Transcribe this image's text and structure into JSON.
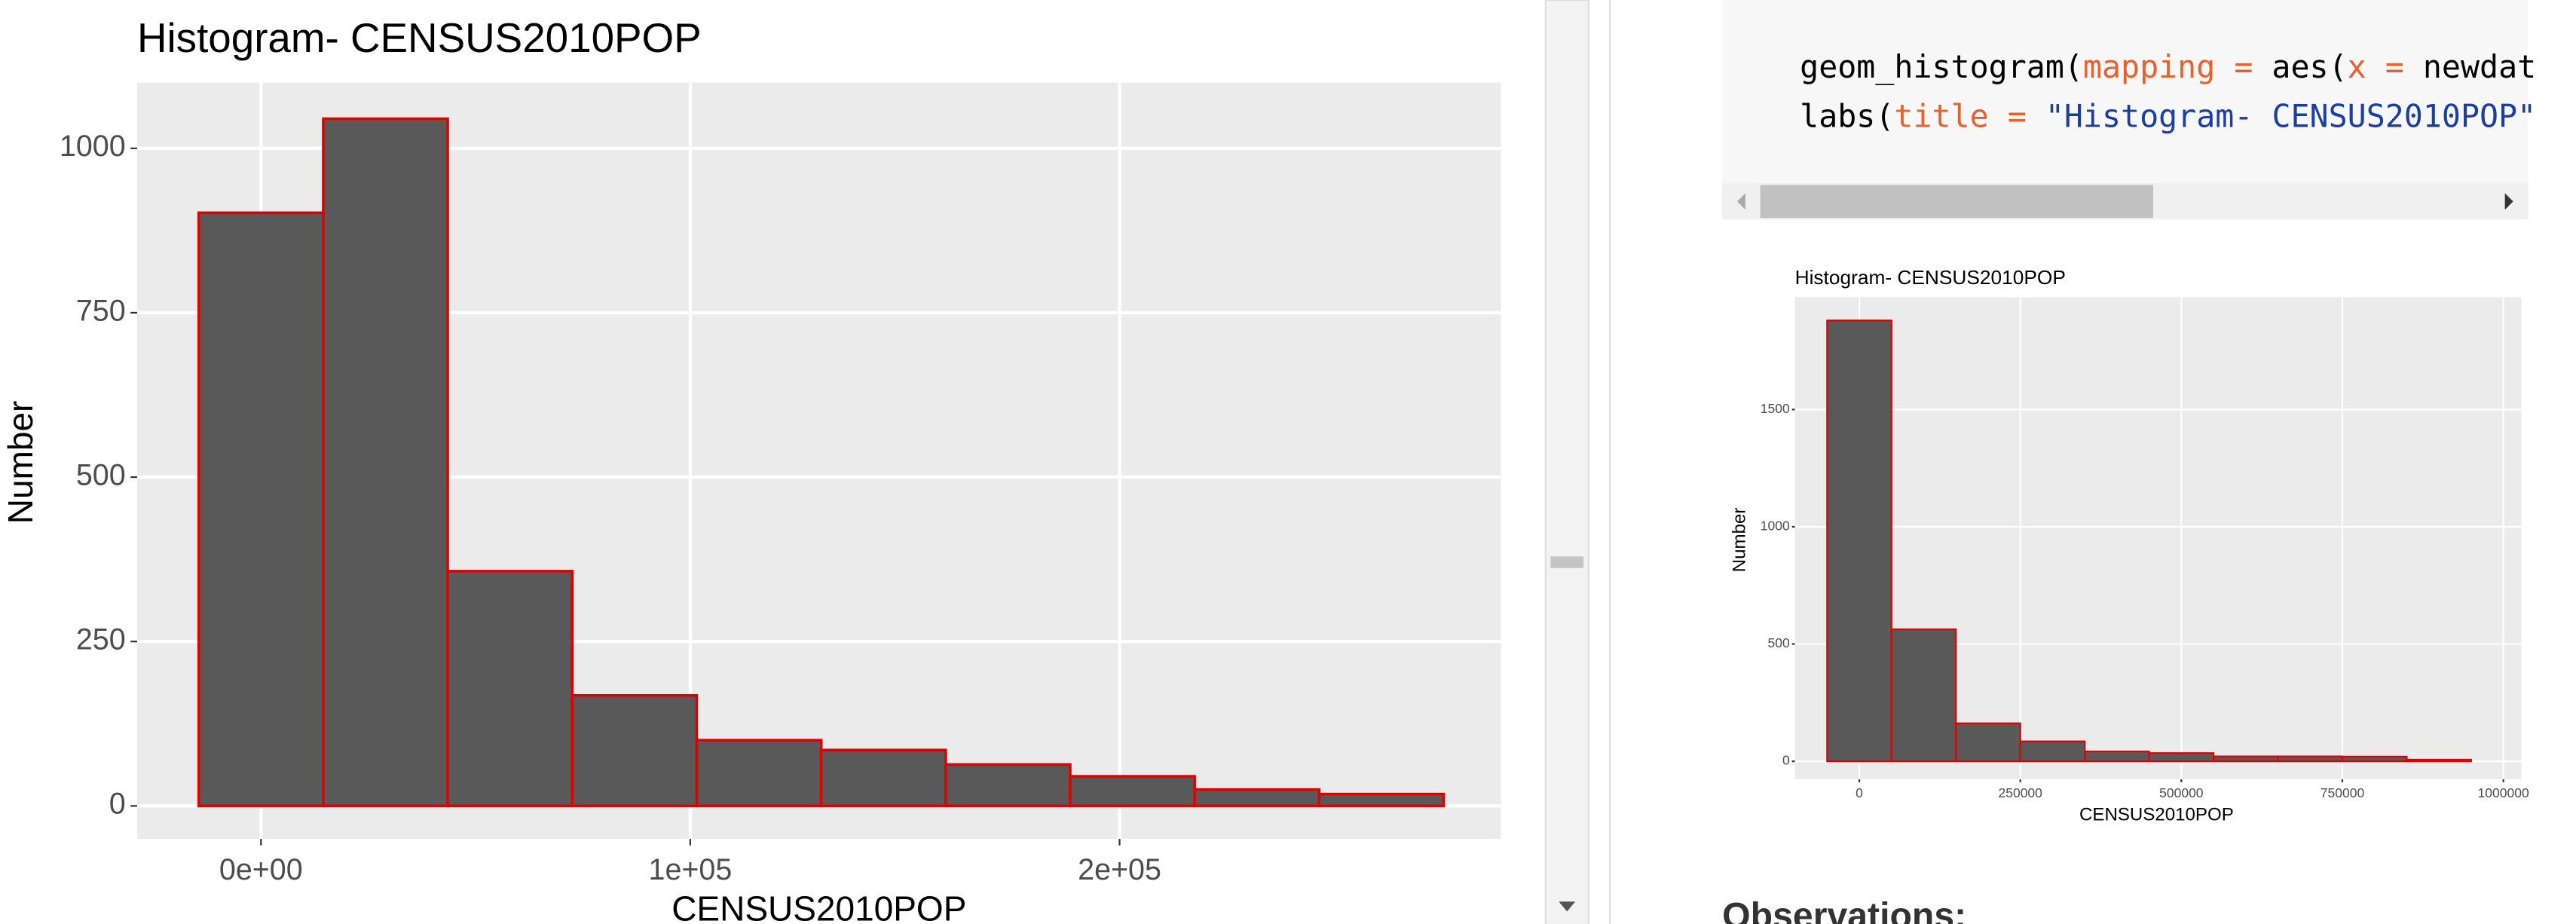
{
  "chart_data": [
    {
      "type": "histogram",
      "title": "Histogram- CENSUS2010POP",
      "x_label": "CENSUS2010POP",
      "y_label": "Number",
      "bins": [
        -14500,
        14500,
        43500,
        72500,
        101500,
        130500,
        159500,
        188500,
        217500,
        246500,
        275500
      ],
      "values": [
        902,
        1045,
        357,
        168,
        100,
        85,
        63,
        45,
        25,
        18
      ],
      "color": "#595959",
      "edge_color": "#e00000",
      "xlim": [
        -28850,
        288850
      ],
      "ylim": [
        -50,
        1100
      ],
      "xticks": [
        {
          "value": 0,
          "label": "0e+00"
        },
        {
          "value": 100000,
          "label": "1e+05"
        },
        {
          "value": 200000,
          "label": "2e+05"
        }
      ],
      "yticks": [
        0,
        250,
        500,
        750,
        1000
      ],
      "grid": true
    },
    {
      "type": "histogram",
      "title": "Histogram- CENSUS2010POP",
      "x_label": "CENSUS2010POP",
      "y_label": "Number",
      "bins": [
        -50000,
        50000,
        150000,
        250000,
        350000,
        450000,
        550000,
        650000,
        750000,
        850000,
        950000
      ],
      "values": [
        1880,
        563,
        162,
        85,
        42,
        35,
        21,
        21,
        20,
        7
      ],
      "color": "#595959",
      "edge_color": "#e00000",
      "xlim": [
        -100000,
        1028000
      ],
      "ylim": [
        -77,
        1979
      ],
      "xticks": [
        0,
        250000,
        500000,
        750000,
        1000000
      ],
      "yticks": [
        0,
        500,
        1000,
        1500
      ],
      "grid": true
    }
  ],
  "code": {
    "lines": [
      [
        "geom_histogram(",
        "mapping =",
        " aes(",
        "x =",
        " newdat"
      ],
      [
        "labs(",
        "title =",
        " \"Histogram- CENSUS2010POP\""
      ]
    ]
  },
  "observations": "Observations:"
}
